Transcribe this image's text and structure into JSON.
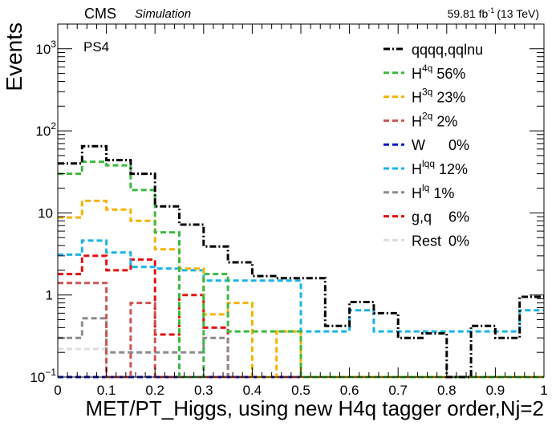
{
  "header": {
    "experiment": "CMS",
    "tag": "Simulation",
    "lumi": "59.81",
    "lumi_unit": "fb",
    "lumi_exp": "-1",
    "energy": "(13 TeV)"
  },
  "chart_data": {
    "type": "step-histogram",
    "ylabel": "Events",
    "xlabel": "MET/PT_Higgs, using new H4q tagger order,Nj=2",
    "annotation": "PS4",
    "y_scale": "log",
    "xlim": [
      0,
      1
    ],
    "ylim": [
      0.1,
      2000
    ],
    "x_ticks": [
      {
        "v": 0,
        "label": "0"
      },
      {
        "v": 0.1,
        "label": "0.1"
      },
      {
        "v": 0.2,
        "label": "0.2"
      },
      {
        "v": 0.3,
        "label": "0.3"
      },
      {
        "v": 0.4,
        "label": "0.4"
      },
      {
        "v": 0.5,
        "label": "0.5"
      },
      {
        "v": 0.6,
        "label": "0.6"
      },
      {
        "v": 0.7,
        "label": "0.7"
      },
      {
        "v": 0.8,
        "label": "0.8"
      },
      {
        "v": 0.9,
        "label": "0.9"
      },
      {
        "v": 1,
        "label": "1"
      }
    ],
    "y_ticks": [
      {
        "v": 0.1,
        "base": "10",
        "exp": "−1"
      },
      {
        "v": 1,
        "base": "1",
        "exp": ""
      },
      {
        "v": 10,
        "base": "10",
        "exp": ""
      },
      {
        "v": 100,
        "base": "10",
        "exp": "2"
      },
      {
        "v": 1000,
        "base": "10",
        "exp": "3"
      }
    ],
    "bin_edges": [
      0,
      0.05,
      0.1,
      0.15,
      0.2,
      0.25,
      0.3,
      0.35,
      0.4,
      0.45,
      0.5,
      0.55,
      0.6,
      0.65,
      0.7,
      0.75,
      0.8,
      0.85,
      0.9,
      0.95,
      1.0
    ],
    "legend_placement": "top-right",
    "series": [
      {
        "name": "qqqq,qqlnu",
        "label": "qqqq,qqlnu",
        "pct": "",
        "color": "#000000",
        "dash": "dashdot",
        "values": [
          40,
          65,
          44,
          30,
          12,
          7.2,
          3.9,
          2.5,
          1.7,
          1.6,
          1.6,
          0.42,
          0.82,
          0.6,
          0.3,
          0.34,
          0.1,
          0.42,
          0.3,
          0.95
        ]
      },
      {
        "name": "H4q",
        "label": "H",
        "sup": "4q",
        "pct": "56%",
        "color": "#3cb940",
        "dash": "dash",
        "values": [
          30,
          42,
          38,
          19,
          5.8,
          0.1,
          1.8,
          0.36,
          0.36,
          0.36,
          0.1,
          0.1,
          0.1,
          0.1,
          0.1,
          0.1,
          0.1,
          0.1,
          0.1,
          0.1
        ]
      },
      {
        "name": "H3q",
        "label": "H",
        "sup": "3q",
        "pct": "23%",
        "color": "#f5b300",
        "dash": "dash",
        "values": [
          8.8,
          14,
          11,
          8,
          3.6,
          2.1,
          0.58,
          0.8,
          0.1,
          0.36,
          0.1,
          0.1,
          0.1,
          0.1,
          0.1,
          0.1,
          0.1,
          0.1,
          0.1,
          0.1
        ]
      },
      {
        "name": "H2q",
        "label": "H",
        "sup": "2q",
        "pct": "2%",
        "color": "#cc5555",
        "dash": "dash",
        "values": [
          1.4,
          1.4,
          0.1,
          0.8,
          0.1,
          0.1,
          0.1,
          0.1,
          0.1,
          0.1,
          0.1,
          0.1,
          0.1,
          0.1,
          0.1,
          0.1,
          0.1,
          0.1,
          0.1,
          0.1
        ]
      },
      {
        "name": "W",
        "label": "W",
        "sup": "",
        "pct": "0%",
        "color": "#0b18c8",
        "dash": "dash",
        "values": [
          0.1,
          0.1,
          0.1,
          0.1,
          0.1,
          0.1,
          0.1,
          0.1,
          0.1,
          0.1,
          0.1,
          0.1,
          0.1,
          0.1,
          0.1,
          0.1,
          0.1,
          0.1,
          0.1,
          0.1
        ]
      },
      {
        "name": "Hlqq",
        "label": "H",
        "sup": "lqq",
        "pct": "12%",
        "color": "#1bb3e8",
        "dash": "dash",
        "values": [
          3.1,
          4.6,
          3.3,
          2.2,
          2.1,
          2.0,
          1.5,
          1.5,
          1.5,
          1.5,
          0.36,
          0.36,
          0.65,
          0.36,
          0.36,
          0.36,
          0.36,
          0.36,
          0.36,
          0.65
        ]
      },
      {
        "name": "Hlq",
        "label": "H",
        "sup": "lq",
        "pct": "1%",
        "color": "#8c8c8c",
        "dash": "dash",
        "values": [
          0.3,
          0.52,
          0.2,
          0.2,
          0.2,
          0.2,
          0.3,
          0.1,
          0.1,
          0.1,
          0.1,
          0.1,
          0.1,
          0.1,
          0.1,
          0.1,
          0.1,
          0.1,
          0.1,
          0.1
        ]
      },
      {
        "name": "g,q",
        "label": "g,q",
        "sup": "",
        "pct": "6%",
        "color": "#e01010",
        "dash": "dash",
        "values": [
          1.8,
          3.0,
          2.0,
          2.7,
          0.33,
          1.0,
          0.4,
          0.1,
          0.1,
          0.1,
          0.1,
          0.1,
          0.1,
          0.1,
          0.1,
          0.1,
          0.1,
          0.1,
          0.1,
          0.1
        ]
      },
      {
        "name": "Rest",
        "label": "Rest",
        "sup": "",
        "pct": "0%",
        "color": "#dddddd",
        "dash": "dash",
        "values": [
          0.22,
          0.22,
          0.1,
          0.1,
          0.1,
          0.1,
          0.1,
          0.1,
          0.1,
          0.1,
          0.1,
          0.1,
          0.1,
          0.1,
          0.1,
          0.1,
          0.1,
          0.1,
          0.1,
          0.1
        ]
      }
    ]
  }
}
